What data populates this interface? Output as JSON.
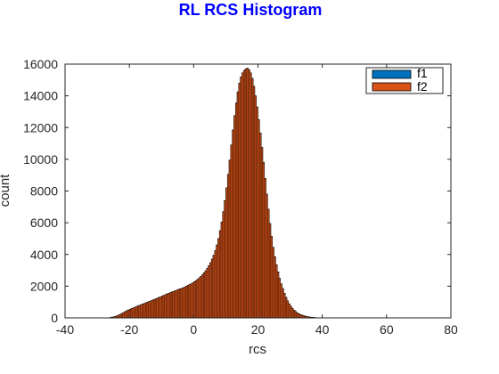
{
  "chart_data": {
    "type": "bar",
    "title": "RL RCS Histogram",
    "xlabel": "rcs",
    "ylabel": "count",
    "xlim": [
      -40,
      80
    ],
    "ylim": [
      0,
      16000
    ],
    "xticks": [
      "-40",
      "-20",
      "0",
      "20",
      "40",
      "60",
      "80"
    ],
    "yticks": [
      "0",
      "2000",
      "4000",
      "6000",
      "8000",
      "10000",
      "12000",
      "14000",
      "16000"
    ],
    "bin_width": 0.5,
    "legend_position": "top-right",
    "series": [
      {
        "name": "f1",
        "color": "#0072bd",
        "x": [
          -26.0,
          -25.5,
          -25.0,
          -24.5,
          -24.0,
          -23.5,
          -23.0,
          -22.5,
          -22.0,
          -21.5,
          -21.0,
          -20.5,
          -20.0,
          -19.5,
          -19.0,
          -18.5,
          -18.0,
          -17.5,
          -17.0,
          -16.5,
          -16.0,
          -15.5,
          -15.0,
          -14.5,
          -14.0,
          -13.5,
          -13.0,
          -12.5,
          -12.0,
          -11.5,
          -11.0,
          -10.5,
          -10.0,
          -9.5,
          -9.0,
          -8.5,
          -8.0,
          -7.5,
          -7.0,
          -6.5,
          -6.0,
          -5.5,
          -5.0,
          -4.5,
          -4.0,
          -3.5,
          -3.0,
          -2.5,
          -2.0,
          -1.5,
          -1.0,
          -0.5,
          0.0,
          0.5,
          1.0,
          1.5,
          2.0,
          2.5,
          3.0,
          3.5,
          4.0,
          4.5,
          5.0,
          5.5,
          6.0,
          6.5,
          7.0,
          7.5,
          8.0,
          8.5,
          9.0,
          9.5,
          10.0,
          10.5,
          11.0,
          11.5,
          12.0,
          12.5,
          13.0,
          13.5,
          14.0,
          14.5,
          15.0,
          15.5,
          16.0,
          16.5,
          17.0,
          17.5,
          18.0,
          18.5,
          19.0,
          19.5,
          20.0,
          20.5,
          21.0,
          21.5,
          22.0,
          22.5,
          23.0,
          23.5,
          24.0,
          24.5,
          25.0,
          25.5,
          26.0,
          26.5,
          27.0,
          27.5,
          28.0,
          28.5,
          29.0,
          29.5,
          30.0,
          30.5,
          31.0,
          31.5,
          32.0,
          32.5,
          33.0,
          33.5,
          34.0,
          34.5,
          35.0,
          35.5,
          36.0,
          36.5,
          37.0,
          37.5,
          38.0,
          38.5,
          39.0,
          39.5,
          40.0,
          40.5,
          41.0,
          41.5,
          42.0,
          42.5,
          43.0,
          43.5,
          44.0,
          44.5,
          45.0,
          45.5,
          46.0,
          46.5,
          47.0,
          47.5,
          48.0,
          48.5,
          49.0,
          49.5,
          50.0,
          50.5,
          51.0,
          51.5
        ],
        "values": [
          30,
          50,
          70,
          100,
          140,
          180,
          230,
          280,
          340,
          400,
          450,
          500,
          540,
          590,
          630,
          670,
          720,
          760,
          800,
          840,
          880,
          920,
          960,
          1000,
          1040,
          1080,
          1120,
          1160,
          1200,
          1240,
          1290,
          1330,
          1380,
          1420,
          1470,
          1510,
          1550,
          1590,
          1630,
          1670,
          1710,
          1750,
          1790,
          1830,
          1860,
          1900,
          1950,
          2000,
          2050,
          2100,
          2150,
          2210,
          2280,
          2350,
          2430,
          2520,
          2610,
          2720,
          2840,
          2970,
          3120,
          3290,
          3480,
          3700,
          3950,
          4250,
          4600,
          5000,
          5500,
          6050,
          6700,
          7400,
          8200,
          9050,
          9950,
          10900,
          11850,
          12750,
          13550,
          14250,
          14800,
          15200,
          15450,
          15600,
          15700,
          15750,
          15650,
          15450,
          15100,
          14600,
          14000,
          13300,
          12500,
          11650,
          10750,
          9800,
          8800,
          7800,
          6850,
          5950,
          5150,
          4450,
          3850,
          3350,
          2900,
          2500,
          2150,
          1850,
          1550,
          1300,
          1080,
          890,
          730,
          600,
          490,
          400,
          320,
          260,
          210,
          170,
          140,
          110,
          85,
          65,
          50,
          40,
          30,
          20,
          15,
          10,
          8,
          6,
          4,
          3,
          2,
          1,
          1,
          0,
          0,
          0,
          0,
          0,
          0,
          0,
          0,
          0,
          0,
          0,
          0,
          0,
          0,
          0,
          0,
          0,
          0,
          0
        ]
      },
      {
        "name": "f2",
        "color": "#d95319",
        "x": [
          -26.0,
          -25.5,
          -25.0,
          -24.5,
          -24.0,
          -23.5,
          -23.0,
          -22.5,
          -22.0,
          -21.5,
          -21.0,
          -20.5,
          -20.0,
          -19.5,
          -19.0,
          -18.5,
          -18.0,
          -17.5,
          -17.0,
          -16.5,
          -16.0,
          -15.5,
          -15.0,
          -14.5,
          -14.0,
          -13.5,
          -13.0,
          -12.5,
          -12.0,
          -11.5,
          -11.0,
          -10.5,
          -10.0,
          -9.5,
          -9.0,
          -8.5,
          -8.0,
          -7.5,
          -7.0,
          -6.5,
          -6.0,
          -5.5,
          -5.0,
          -4.5,
          -4.0,
          -3.5,
          -3.0,
          -2.5,
          -2.0,
          -1.5,
          -1.0,
          -0.5,
          0.0,
          0.5,
          1.0,
          1.5,
          2.0,
          2.5,
          3.0,
          3.5,
          4.0,
          4.5,
          5.0,
          5.5,
          6.0,
          6.5,
          7.0,
          7.5,
          8.0,
          8.5,
          9.0,
          9.5,
          10.0,
          10.5,
          11.0,
          11.5,
          12.0,
          12.5,
          13.0,
          13.5,
          14.0,
          14.5,
          15.0,
          15.5,
          16.0,
          16.5,
          17.0,
          17.5,
          18.0,
          18.5,
          19.0,
          19.5,
          20.0,
          20.5,
          21.0,
          21.5,
          22.0,
          22.5,
          23.0,
          23.5,
          24.0,
          24.5,
          25.0,
          25.5,
          26.0,
          26.5,
          27.0,
          27.5,
          28.0,
          28.5,
          29.0,
          29.5,
          30.0,
          30.5,
          31.0,
          31.5,
          32.0,
          32.5,
          33.0,
          33.5,
          34.0,
          34.5,
          35.0,
          35.5,
          36.0,
          36.5,
          37.0,
          37.5,
          38.0,
          38.5,
          39.0,
          39.5,
          40.0,
          40.5,
          41.0,
          41.5,
          42.0,
          42.5,
          43.0,
          43.5,
          44.0,
          44.5,
          45.0,
          45.5,
          46.0,
          46.5,
          47.0,
          47.5,
          48.0,
          48.5,
          49.0,
          49.5,
          50.0,
          50.5,
          51.0,
          51.5
        ],
        "values": [
          30,
          50,
          70,
          100,
          140,
          180,
          230,
          280,
          340,
          400,
          450,
          500,
          540,
          590,
          630,
          670,
          720,
          760,
          800,
          840,
          880,
          920,
          960,
          1000,
          1040,
          1080,
          1120,
          1160,
          1200,
          1240,
          1290,
          1330,
          1380,
          1420,
          1470,
          1510,
          1550,
          1590,
          1630,
          1670,
          1710,
          1750,
          1790,
          1830,
          1860,
          1900,
          1950,
          2000,
          2050,
          2100,
          2150,
          2210,
          2280,
          2350,
          2430,
          2520,
          2610,
          2720,
          2840,
          2970,
          3120,
          3290,
          3480,
          3700,
          3950,
          4250,
          4600,
          5000,
          5500,
          6050,
          6700,
          7400,
          8200,
          9050,
          9950,
          10900,
          11850,
          12750,
          13550,
          14250,
          14800,
          15200,
          15450,
          15600,
          15700,
          15750,
          15650,
          15450,
          15100,
          14600,
          14000,
          13300,
          12500,
          11650,
          10750,
          9800,
          8800,
          7800,
          6850,
          5950,
          5150,
          4450,
          3850,
          3350,
          2900,
          2500,
          2150,
          1850,
          1550,
          1300,
          1080,
          890,
          730,
          600,
          490,
          400,
          320,
          260,
          210,
          170,
          140,
          110,
          85,
          65,
          50,
          40,
          30,
          20,
          15,
          10,
          8,
          6,
          4,
          3,
          2,
          1,
          1,
          0,
          0,
          0,
          0,
          0,
          0,
          0,
          0,
          0,
          0,
          0,
          0,
          0,
          0,
          0,
          0,
          0,
          0,
          0
        ]
      }
    ]
  }
}
